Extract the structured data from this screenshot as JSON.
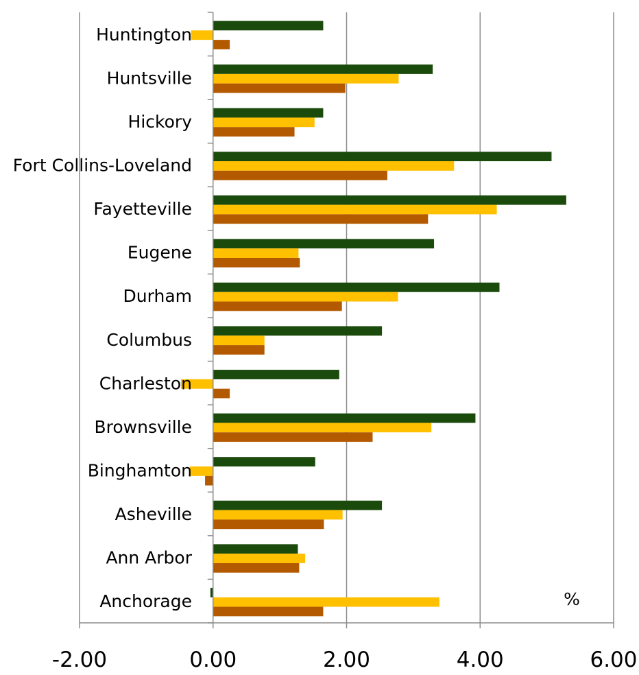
{
  "chart_data": {
    "type": "bar",
    "orientation": "horizontal",
    "categories": [
      "Huntington",
      "Huntsville",
      "Hickory",
      "Fort Collins-Loveland",
      "Fayetteville",
      "Eugene",
      "Durham",
      "Columbus",
      "Charleston",
      "Brownsville",
      "Binghamton",
      "Asheville",
      "Ann Arbor",
      "Anchorage"
    ],
    "series": [
      {
        "color": "#1a4a0c",
        "values": [
          1.65,
          3.29,
          1.65,
          5.07,
          5.29,
          3.31,
          4.29,
          2.53,
          1.89,
          3.93,
          1.53,
          2.53,
          1.27,
          -0.04
        ]
      },
      {
        "color": "#ffc000",
        "values": [
          -0.33,
          2.78,
          1.52,
          3.61,
          4.25,
          1.28,
          2.77,
          0.77,
          -0.48,
          3.27,
          -0.35,
          1.94,
          1.38,
          3.39
        ]
      },
      {
        "color": "#b35a00",
        "values": [
          0.25,
          1.98,
          1.22,
          2.61,
          3.22,
          1.3,
          1.93,
          0.77,
          0.25,
          2.39,
          -0.12,
          1.66,
          1.29,
          1.65
        ]
      }
    ],
    "x_ticks": [
      "-2.00",
      "0.00",
      "2.00",
      "4.00",
      "6.00"
    ],
    "xlim": [
      -2,
      6
    ],
    "unit_label": "%",
    "grid": true,
    "legend": "none"
  }
}
